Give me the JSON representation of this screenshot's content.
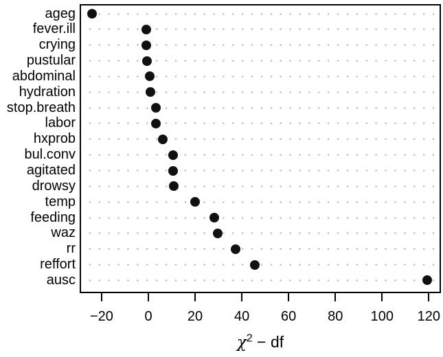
{
  "figure": {
    "background": "#ffffff",
    "frame_color": "#000000",
    "text_color": "#000000"
  },
  "chart_data": {
    "type": "scatter",
    "subtype": "dotplot",
    "title": "",
    "xlabel": "χ2 − df",
    "xlabel_parts": {
      "chi": "χ",
      "sup": "2",
      "rest": " − df"
    },
    "ylabel": "",
    "categories": [
      "ageg",
      "fever.ill",
      "crying",
      "pustular",
      "abdominal",
      "hydration",
      "stop.breath",
      "labor",
      "hxprob",
      "bul.conv",
      "agitated",
      "drowsy",
      "temp",
      "feeding",
      "waz",
      "rr",
      "reffort",
      "ausc"
    ],
    "values": [
      -24.0,
      -0.8,
      -1.0,
      -0.6,
      0.5,
      0.9,
      3.2,
      3.1,
      6.1,
      10.5,
      10.5,
      10.8,
      20.1,
      28.1,
      29.6,
      37.4,
      45.5,
      119.4
    ],
    "x_ticks": [
      -20,
      0,
      20,
      40,
      60,
      80,
      100,
      120
    ],
    "x_tick_labels": [
      "−20",
      "0",
      "20",
      "40",
      "60",
      "80",
      "100",
      "120"
    ],
    "xlim": [
      -28.8,
      124.6
    ],
    "grid": "dotted-horizontal-reference-lines",
    "legend": "none",
    "point_color": "#111111",
    "grid_dot_color": "#c2c2c2"
  }
}
